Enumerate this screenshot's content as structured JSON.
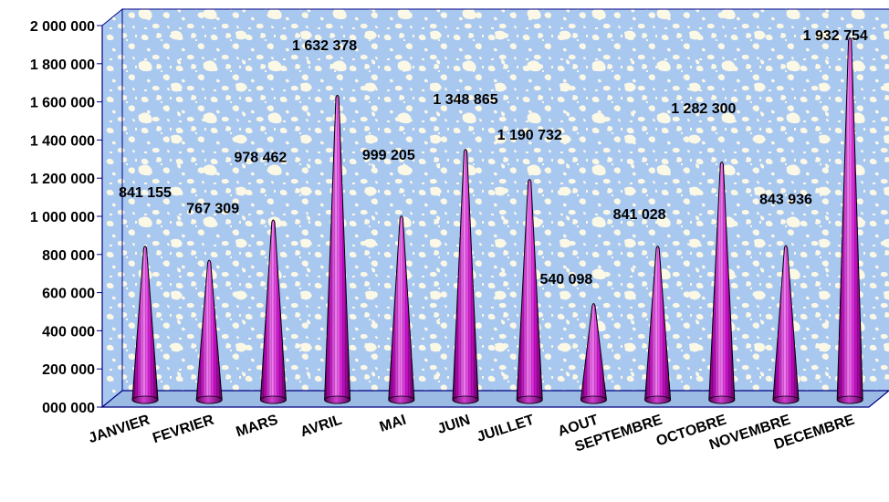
{
  "chart_data": {
    "type": "bar",
    "style": "3d-cone",
    "categories": [
      "JANVIER",
      "FEVRIER",
      "MARS",
      "AVRIL",
      "MAI",
      "JUIN",
      "JUILLET",
      "AOUT",
      "SEPTEMBRE",
      "OCTOBRE",
      "NOVEMBRE",
      "DECEMBRE"
    ],
    "values": [
      841155,
      767309,
      978462,
      1632378,
      999205,
      1348865,
      1190732,
      540098,
      841028,
      1282300,
      843936,
      1932754
    ],
    "data_labels": [
      "841 155",
      "767 309",
      "978 462",
      "1 632 378",
      "999 205",
      "1 348 865",
      "1 190 732",
      "540 098",
      "841 028",
      "1 282 300",
      "843 936",
      "1 932 754"
    ],
    "ylim": [
      0,
      2000000
    ],
    "yticks": [
      0,
      200000,
      400000,
      600000,
      800000,
      1000000,
      1200000,
      1400000,
      1600000,
      1800000,
      2000000
    ],
    "ytick_labels": [
      "000 000",
      "200 000",
      "400 000",
      "600 000",
      "800 000",
      "1 000 000",
      "1 200 000",
      "1 400 000",
      "1 600 000",
      "1 800 000",
      "2 000 000"
    ],
    "title": "",
    "xlabel": "",
    "ylabel": "",
    "grid": false,
    "legend": "none",
    "colors": {
      "bar": "#cc10cc",
      "bar_light": "#f27ff2",
      "bar_dark": "#6a006a",
      "wall": "#a9c8f0",
      "wall_speckle": "#fbf8e6",
      "axis": "#000080"
    }
  }
}
